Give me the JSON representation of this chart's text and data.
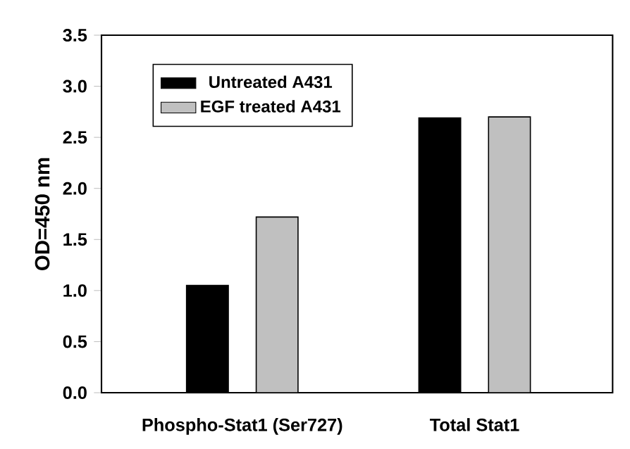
{
  "chart_data": {
    "type": "bar",
    "ylabel": "OD=450 nm",
    "categories": [
      "Phospho-Stat1 (Ser727)",
      "Total Stat1"
    ],
    "series": [
      {
        "name": "Untreated A431",
        "color": "#000000",
        "values": [
          1.05,
          2.69
        ]
      },
      {
        "name": "EGF treated A431",
        "color": "#c0c0c0",
        "values": [
          1.72,
          2.7
        ]
      }
    ],
    "ylim": [
      0,
      3.5
    ],
    "yticks": [
      {
        "value": 0,
        "label": "0.0"
      },
      {
        "value": 0.5,
        "label": "0.5"
      },
      {
        "value": 1,
        "label": "1.0"
      },
      {
        "value": 1.5,
        "label": "1.5"
      },
      {
        "value": 2,
        "label": "2.0"
      },
      {
        "value": 2.5,
        "label": "2.5"
      },
      {
        "value": 3,
        "label": "3.0"
      },
      {
        "value": 3.5,
        "label": "3.5"
      }
    ],
    "legend": "top left"
  }
}
